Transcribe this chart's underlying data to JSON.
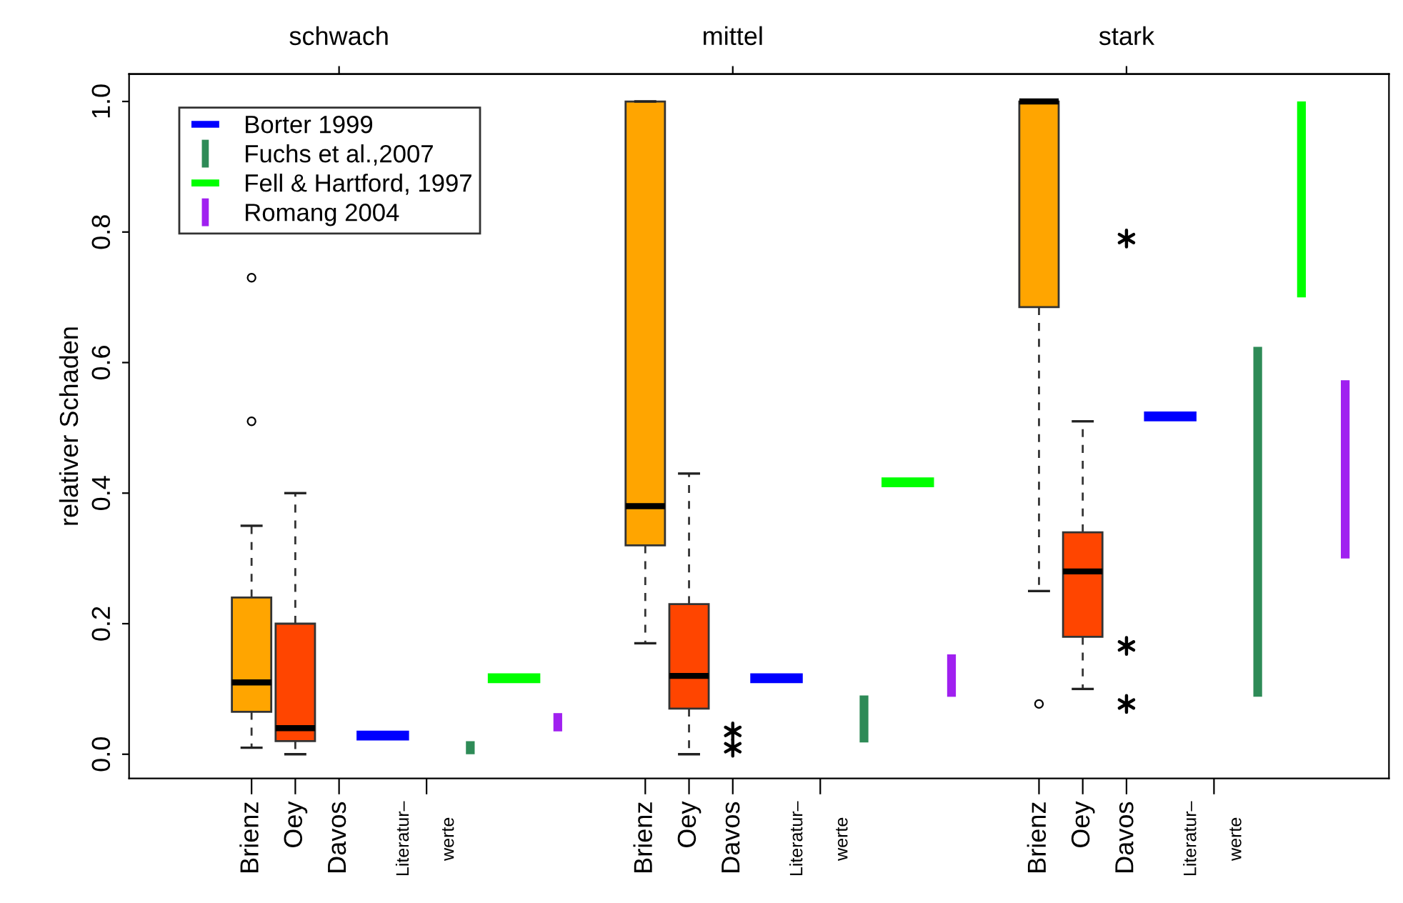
{
  "chart_data": {
    "type": "box",
    "ylabel": "relativer Schaden",
    "annotations": [
      "schwach",
      "mittel",
      "stark"
    ],
    "categories": [
      "Brienz",
      "Oey",
      "Davos",
      null,
      "Literatur–\nwerte",
      null,
      null,
      null,
      null,
      "Brienz",
      "Oey",
      "Davos",
      null,
      "Literatur–\nwerte",
      null,
      null,
      null,
      null,
      "Brienz",
      "Oey",
      "Davos",
      null,
      "Literatur–\nwerte",
      null,
      null,
      null,
      null
    ],
    "colors": [
      "#ffa500",
      "#ff4500",
      null,
      null,
      null,
      null,
      null,
      null,
      null,
      "#ffa500",
      "#ff4500",
      null,
      null,
      null,
      null,
      null,
      null,
      null,
      "#ffa500",
      "#ff4500",
      null,
      null,
      null,
      null,
      null,
      null,
      null
    ],
    "boxes": [
      {
        "low": 0.01,
        "q1": 0.065,
        "median": 0.11,
        "q3": 0.24,
        "high": 0.35,
        "outliers": [
          0.51,
          0.73
        ]
      },
      {
        "low": 0.0,
        "q1": 0.02,
        "median": 0.04,
        "q3": 0.2,
        "high": 0.4
      },
      null,
      null,
      null,
      null,
      null,
      null,
      null,
      {
        "low": 0.17,
        "q1": 0.32,
        "median": 0.38,
        "q3": 1.0,
        "high": 1.0
      },
      {
        "low": 0.0,
        "q1": 0.07,
        "median": 0.12,
        "q3": 0.23,
        "high": 0.43
      },
      null,
      null,
      null,
      null,
      null,
      null,
      null,
      {
        "low": 0.25,
        "q1": 0.685,
        "median": 1.0,
        "q3": 1.0,
        "high": 1.0,
        "outliers": [
          0.077
        ]
      },
      {
        "low": 0.1,
        "q1": 0.18,
        "median": 0.28,
        "q3": 0.34,
        "high": 0.51
      },
      null,
      null,
      null,
      null,
      null,
      null,
      null
    ],
    "series": [
      {
        "name": "Borter 1999",
        "type": "bar",
        "color": "#0000ff",
        "base": [
          null,
          null,
          null,
          0.021,
          null,
          null,
          null,
          null,
          null,
          null,
          null,
          null,
          0.109,
          null,
          null,
          null,
          null,
          null,
          null,
          null,
          null,
          0.51,
          null,
          null,
          null,
          null,
          null
        ],
        "values": [
          null,
          null,
          null,
          0.015,
          null,
          null,
          null,
          null,
          null,
          null,
          null,
          null,
          0.015,
          null,
          null,
          null,
          null,
          null,
          null,
          null,
          null,
          0.015,
          null,
          null,
          null,
          null,
          null
        ]
      },
      {
        "name": "Fuchs et al.,2007",
        "type": "bar",
        "color": "#2e8b57",
        "base": [
          null,
          null,
          null,
          null,
          null,
          0.0,
          null,
          null,
          null,
          null,
          null,
          null,
          null,
          null,
          0.018,
          null,
          null,
          null,
          null,
          null,
          null,
          null,
          null,
          0.088,
          null,
          null,
          null
        ],
        "values": [
          null,
          null,
          null,
          null,
          null,
          0.02,
          null,
          null,
          null,
          null,
          null,
          null,
          null,
          null,
          0.072,
          null,
          null,
          null,
          null,
          null,
          null,
          null,
          null,
          0.536,
          null,
          null,
          null
        ]
      },
      {
        "name": "Fell & Hartford, 1997",
        "type": "bar",
        "color": "#00ff00",
        "base": [
          null,
          null,
          null,
          null,
          null,
          null,
          0.109,
          null,
          null,
          null,
          null,
          null,
          null,
          null,
          null,
          0.409,
          null,
          null,
          null,
          null,
          null,
          null,
          null,
          null,
          0.7,
          null,
          null
        ],
        "values": [
          null,
          null,
          null,
          null,
          null,
          null,
          0.015,
          null,
          null,
          null,
          null,
          null,
          null,
          null,
          null,
          0.015,
          null,
          null,
          null,
          null,
          null,
          null,
          null,
          null,
          0.3,
          null,
          null
        ]
      },
      {
        "name": "Romang 2004",
        "type": "bar",
        "color": "#a020f0",
        "base": [
          null,
          null,
          null,
          null,
          null,
          null,
          null,
          0.035,
          null,
          null,
          null,
          null,
          null,
          null,
          null,
          null,
          0.088,
          null,
          null,
          null,
          null,
          null,
          null,
          null,
          null,
          0.3,
          null
        ],
        "values": [
          null,
          null,
          null,
          null,
          null,
          null,
          null,
          0.028,
          null,
          null,
          null,
          null,
          null,
          null,
          null,
          null,
          0.065,
          null,
          null,
          null,
          null,
          null,
          null,
          null,
          null,
          0.273,
          null
        ]
      },
      {
        "type": "scatter",
        "color": "#000000",
        "marker": "cross",
        "values": [
          null,
          null,
          null,
          null,
          null,
          null,
          null,
          null,
          null,
          null,
          null,
          0.035,
          null,
          null,
          null,
          null,
          null,
          null,
          null,
          null,
          0.79,
          null,
          null,
          null,
          null,
          null,
          null
        ]
      },
      {
        "type": "scatter",
        "color": "#000000",
        "marker": "cross",
        "values": [
          null,
          null,
          null,
          null,
          null,
          null,
          null,
          null,
          null,
          null,
          null,
          0.01,
          null,
          null,
          null,
          null,
          null,
          null,
          null,
          null,
          0.166,
          null,
          null,
          null,
          null,
          null,
          null
        ]
      },
      {
        "type": "scatter",
        "color": "#000000",
        "marker": "cross",
        "values": [
          null,
          null,
          null,
          null,
          null,
          null,
          null,
          null,
          null,
          null,
          null,
          null,
          null,
          null,
          null,
          null,
          null,
          null,
          null,
          null,
          0.077,
          null,
          null,
          null,
          null,
          null,
          null
        ]
      }
    ],
    "ylim": [
      -0.037,
      1.042
    ],
    "yticks": [
      {
        "value": 0,
        "label": "0.0"
      },
      0.2,
      0.4,
      0.6,
      0.8,
      {
        "value": 1,
        "label": "1.0"
      }
    ],
    "legend": "top left"
  }
}
